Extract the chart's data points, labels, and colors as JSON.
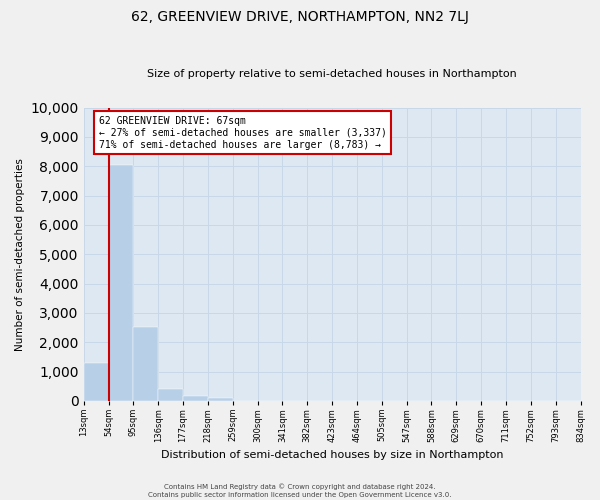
{
  "title": "62, GREENVIEW DRIVE, NORTHAMPTON, NN2 7LJ",
  "subtitle": "Size of property relative to semi-detached houses in Northampton",
  "xlabel": "Distribution of semi-detached houses by size in Northampton",
  "ylabel": "Number of semi-detached properties",
  "bin_labels": [
    "13sqm",
    "54sqm",
    "95sqm",
    "136sqm",
    "177sqm",
    "218sqm",
    "259sqm",
    "300sqm",
    "341sqm",
    "382sqm",
    "423sqm",
    "464sqm",
    "505sqm",
    "547sqm",
    "588sqm",
    "629sqm",
    "670sqm",
    "711sqm",
    "752sqm",
    "793sqm",
    "834sqm"
  ],
  "bar_values": [
    1300,
    8050,
    2530,
    395,
    155,
    90,
    0,
    0,
    0,
    0,
    0,
    0,
    0,
    0,
    0,
    0,
    0,
    0,
    0,
    0
  ],
  "bar_color": "#b8cfe8",
  "property_line_label": "62 GREENVIEW DRIVE: 67sqm",
  "annotation_line1": "← 27% of semi-detached houses are smaller (3,337)",
  "annotation_line2": "71% of semi-detached houses are larger (8,783) →",
  "annotation_box_facecolor": "#ffffff",
  "annotation_box_edgecolor": "#cc0000",
  "property_line_color": "#cc0000",
  "ylim": [
    0,
    10000
  ],
  "yticks": [
    0,
    1000,
    2000,
    3000,
    4000,
    5000,
    6000,
    7000,
    8000,
    9000,
    10000
  ],
  "grid_color": "#c8d8e8",
  "background_color": "#dde8f2",
  "fig_facecolor": "#f0f0f0",
  "footer_line1": "Contains HM Land Registry data © Crown copyright and database right 2024.",
  "footer_line2": "Contains public sector information licensed under the Open Government Licence v3.0."
}
